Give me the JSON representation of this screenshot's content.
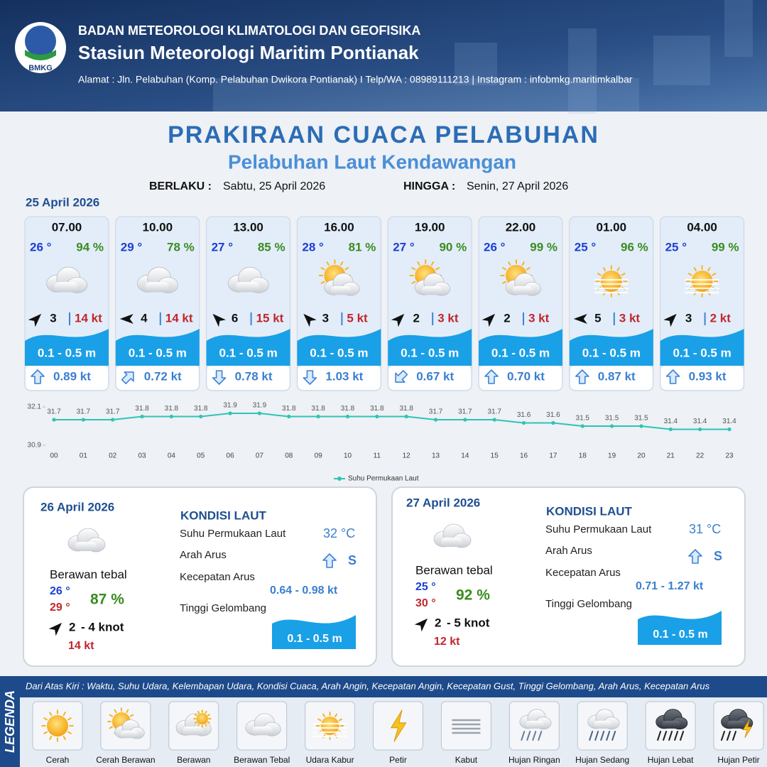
{
  "header": {
    "logo": "BMKG",
    "org": "BADAN METEOROLOGI KLIMATOLOGI DAN GEOFISIKA",
    "station": "Stasiun Meteorologi Maritim Pontianak",
    "address": "Alamat : Jln. Pelabuhan (Komp. Pelabuhan Dwikora Pontianak) I Telp/WA : 08989111213 | Instagram : infobmkg.maritimkalbar"
  },
  "title": "PRAKIRAAN CUACA PELABUHAN",
  "subtitle": "Pelabuhan Laut Kendawangan",
  "validity": {
    "from_label": "BERLAKU :",
    "from": "Sabtu, 25 April 2026",
    "to_label": "HINGGA :",
    "to": "Senin, 27 April 2026"
  },
  "day1": {
    "date": "25 April 2026",
    "cards": [
      {
        "time": "07.00",
        "temp": "26 °",
        "humidity": "94 %",
        "wind": "3",
        "gust": "14 kt",
        "wave": "0.1 - 0.5 m",
        "current": "0.89 kt"
      },
      {
        "time": "10.00",
        "temp": "29 °",
        "humidity": "78 %",
        "wind": "4",
        "gust": "14 kt",
        "wave": "0.1 - 0.5 m",
        "current": "0.72 kt"
      },
      {
        "time": "13.00",
        "temp": "27 °",
        "humidity": "85 %",
        "wind": "6",
        "gust": "15 kt",
        "wave": "0.1 - 0.5 m",
        "current": "0.78 kt"
      },
      {
        "time": "16.00",
        "temp": "28 °",
        "humidity": "81 %",
        "wind": "3",
        "gust": "5 kt",
        "wave": "0.1 - 0.5 m",
        "current": "1.03 kt"
      },
      {
        "time": "19.00",
        "temp": "27 °",
        "humidity": "90 %",
        "wind": "2",
        "gust": "3 kt",
        "wave": "0.1 - 0.5 m",
        "current": "0.67 kt"
      },
      {
        "time": "22.00",
        "temp": "26 °",
        "humidity": "99 %",
        "wind": "2",
        "gust": "3 kt",
        "wave": "0.1 - 0.5 m",
        "current": "0.70 kt"
      },
      {
        "time": "01.00",
        "temp": "25 °",
        "humidity": "96 %",
        "wind": "5",
        "gust": "3 kt",
        "wave": "0.1 - 0.5 m",
        "current": "0.87 kt"
      },
      {
        "time": "04.00",
        "temp": "25 °",
        "humidity": "99 %",
        "wind": "3",
        "gust": "2 kt",
        "wave": "0.1 - 0.5 m",
        "current": "0.93 kt"
      }
    ]
  },
  "chart_data": {
    "type": "line",
    "categories": [
      "00",
      "01",
      "02",
      "03",
      "04",
      "05",
      "06",
      "07",
      "08",
      "09",
      "10",
      "11",
      "12",
      "13",
      "14",
      "15",
      "16",
      "17",
      "18",
      "19",
      "20",
      "21",
      "22",
      "23"
    ],
    "series": [
      {
        "name": "Suhu Permukaan Laut",
        "color": "#2ec4b6",
        "values": [
          31.7,
          31.7,
          31.7,
          31.8,
          31.8,
          31.8,
          31.9,
          31.9,
          31.8,
          31.8,
          31.8,
          31.8,
          31.8,
          31.7,
          31.7,
          31.7,
          31.6,
          31.6,
          31.5,
          31.5,
          31.5,
          31.4,
          31.4,
          31.4
        ]
      }
    ],
    "ylim": [
      30.9,
      32.1
    ],
    "yticks": [
      30.9,
      32.1
    ],
    "legend": "bottom"
  },
  "days": [
    {
      "date": "26 April 2026",
      "condition": "Berawan tebal",
      "temp_min": "26 °",
      "temp_max": "29 °",
      "humidity": "87 %",
      "wind": "2",
      "wind_max": "- 4 knot",
      "gust": "14 kt",
      "sea_title": "KONDISI LAUT",
      "sst_label": "Suhu Permukaan Laut",
      "sst": "32 °C",
      "current_dir_label": "Arah Arus",
      "current_dir": "S",
      "current_speed_label": "Kecepatan Arus",
      "current_speed": "0.64 - 0.98 kt",
      "wave_label": "Tinggi Gelombang",
      "wave": "0.1 - 0.5 m"
    },
    {
      "date": "27 April 2026",
      "condition": "Berawan tebal",
      "temp_min": "25 °",
      "temp_max": "30 °",
      "humidity": "92 %",
      "wind": "2",
      "wind_max": "- 5 knot",
      "gust": "12 kt",
      "sea_title": "KONDISI LAUT",
      "sst_label": "Suhu Permukaan Laut",
      "sst": "31 °C",
      "current_dir_label": "Arah Arus",
      "current_dir": "S",
      "current_speed_label": "Kecepatan Arus",
      "current_speed": "0.71 - 1.27 kt",
      "wave_label": "Tinggi Gelombang",
      "wave": "0.1 - 0.5 m"
    }
  ],
  "legend": {
    "title": "LEGENDA",
    "description": "Dari Atas Kiri : Waktu, Suhu Udara, Kelembapan Udara, Kondisi Cuaca, Arah Angin, Kecepatan Angin, Kecepatan Gust, Tinggi Gelombang, Arah Arus, Kecepatan Arus",
    "items": [
      "Cerah",
      "Cerah Berawan",
      "Berawan",
      "Berawan Tebal",
      "Udara Kabur",
      "Petir",
      "Kabut",
      "Hujan Ringan",
      "Hujan Sedang",
      "Hujan Lebat",
      "Hujan Petir"
    ]
  }
}
